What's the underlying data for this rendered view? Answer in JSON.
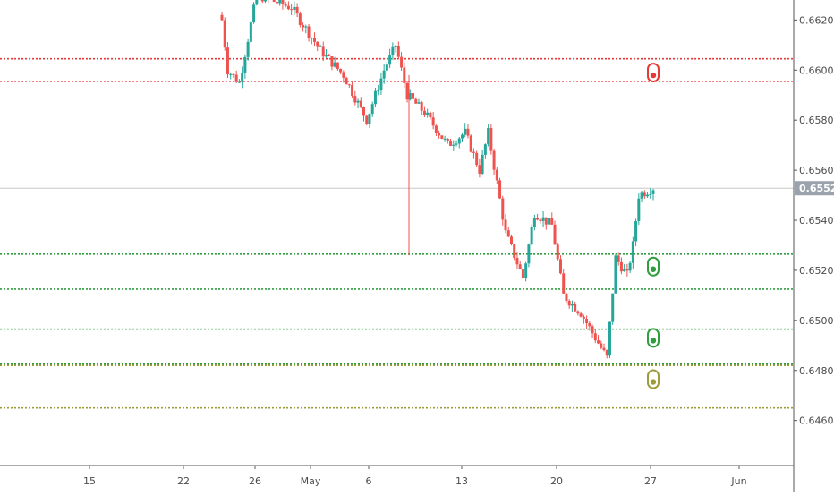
{
  "colors": {
    "up": "#26a69a",
    "down": "#ef5350",
    "resistance": "#e53935",
    "support": "#2e9e3e",
    "support_low": "#9e9c3a",
    "current": "#c8c8c8",
    "axis_text": "#4a4a4a",
    "price_tag_bg": "#9aa3ad",
    "price_tag_text": "#ffffff"
  },
  "chart_data": {
    "type": "candlestick",
    "x_ticks": [
      "15",
      "22",
      "26",
      "May",
      "6",
      "13",
      "20",
      "27",
      "Jun"
    ],
    "y_ticks": [
      "0.66200",
      "0.66000",
      "0.65800",
      "0.65600",
      "0.65400",
      "0.65200",
      "0.65000",
      "0.64800",
      "0.64600"
    ],
    "y_range": [
      0.6442,
      0.6628
    ],
    "current_price": "0.65528",
    "current_price_value": 0.65528,
    "horizontal_levels": [
      {
        "price": 0.66045,
        "kind": "resistance"
      },
      {
        "price": 0.65955,
        "kind": "resistance"
      },
      {
        "price": 0.65265,
        "kind": "support"
      },
      {
        "price": 0.65125,
        "kind": "support"
      },
      {
        "price": 0.64965,
        "kind": "support"
      },
      {
        "price": 0.64825,
        "kind": "support"
      },
      {
        "price": 0.6482,
        "kind": "support_low"
      },
      {
        "price": 0.6465,
        "kind": "support_low"
      }
    ],
    "markers": [
      {
        "price": 0.6599,
        "kind": "resistance",
        "date": "27"
      },
      {
        "price": 0.65215,
        "kind": "support",
        "date": "27"
      },
      {
        "price": 0.6493,
        "kind": "support",
        "date": "27"
      },
      {
        "price": 0.64765,
        "kind": "support_low",
        "date": "27"
      }
    ],
    "candle_segments": [
      {
        "start": 0.663,
        "end": 0.66,
        "count": 3
      },
      {
        "start": 0.66,
        "end": 0.6595,
        "count": 4
      },
      {
        "start": 0.6595,
        "end": 0.663,
        "count": 6
      },
      {
        "start": 0.663,
        "end": 0.6625,
        "count": 12
      },
      {
        "start": 0.6625,
        "end": 0.6608,
        "count": 10
      },
      {
        "start": 0.6608,
        "end": 0.6598,
        "count": 8
      },
      {
        "start": 0.6598,
        "end": 0.658,
        "count": 8
      },
      {
        "start": 0.658,
        "end": 0.66,
        "count": 6
      },
      {
        "start": 0.66,
        "end": 0.661,
        "count": 4
      },
      {
        "start": 0.661,
        "end": 0.659,
        "count": 4
      },
      {
        "start": 0.659,
        "end": 0.6583,
        "count": 6
      },
      {
        "start": 0.6583,
        "end": 0.657,
        "count": 8
      },
      {
        "start": 0.657,
        "end": 0.6575,
        "count": 6
      },
      {
        "start": 0.6575,
        "end": 0.656,
        "count": 5
      },
      {
        "start": 0.656,
        "end": 0.6575,
        "count": 3
      },
      {
        "start": 0.6575,
        "end": 0.6535,
        "count": 6
      },
      {
        "start": 0.6535,
        "end": 0.6517,
        "count": 6
      },
      {
        "start": 0.6517,
        "end": 0.6543,
        "count": 4
      },
      {
        "start": 0.6543,
        "end": 0.6538,
        "count": 6
      },
      {
        "start": 0.6538,
        "end": 0.651,
        "count": 4
      },
      {
        "start": 0.651,
        "end": 0.6503,
        "count": 6
      },
      {
        "start": 0.6503,
        "end": 0.6485,
        "count": 9
      },
      {
        "start": 0.6485,
        "end": 0.6525,
        "count": 3
      },
      {
        "start": 0.6525,
        "end": 0.6518,
        "count": 4
      },
      {
        "start": 0.6518,
        "end": 0.653,
        "count": 2
      },
      {
        "start": 0.653,
        "end": 0.655,
        "count": 2
      },
      {
        "start": 0.655,
        "end": 0.6553,
        "count": 5
      }
    ],
    "spike_low": {
      "from": 0.6598,
      "to": 0.6526
    }
  }
}
